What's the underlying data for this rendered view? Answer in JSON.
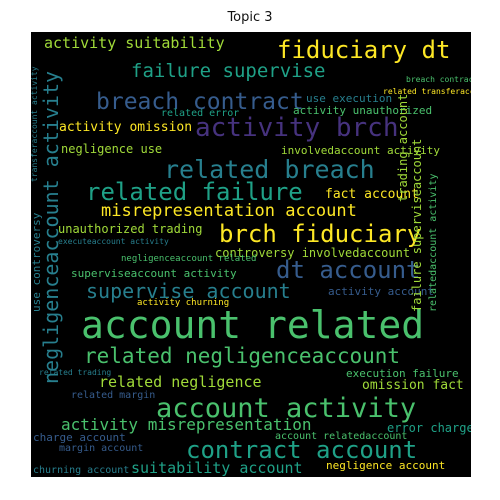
{
  "title": "Topic 3",
  "words": {
    "w1": "account related",
    "w2": "account activity",
    "w3": "contract account",
    "w4": "related negligenceaccount",
    "w5": "activity brch",
    "w6": "brch fiduciary",
    "w7": "fiduciary dt",
    "w8": "breach contract",
    "w9": "related breach",
    "w10": "related failure",
    "w11": "dt account",
    "w12": "supervise account",
    "w13": "misrepresentation account",
    "w14": "failure supervise",
    "w15": "negligenceaccount activity",
    "w16": "activity suitability",
    "w17": "activity misrepresentation",
    "w18": "suitability account",
    "w19": "related negligence",
    "w20": "activity omission",
    "w21": "fact account",
    "w22": "negligence use",
    "w23": "involvedaccount activity",
    "w24": "unauthorized trading",
    "w25": "controversy involvedaccount",
    "w26": "superviseaccount activity",
    "w27": "use execution",
    "w28": "activity unauthorized",
    "w29": "related error",
    "w30": "omission fact",
    "w31": "execution failure",
    "w32": "error charge",
    "w33": "charge account",
    "w34": "margin account",
    "w35": "churning account",
    "w36": "negligence account",
    "w37": "account relatedaccount",
    "w38": "executeaccount activity",
    "w39": "use controversy",
    "w40": "trading account",
    "w41": "failure superviseaccount",
    "w42": "relatedaccount activity",
    "w43": "related margin",
    "w44": "activity churning",
    "w45": "activity account",
    "w46": "related transferaccount",
    "w47": "related trading",
    "w48": "negligenceaccount related",
    "w49": "breach contractaccount",
    "w50": "transferaccount activity"
  },
  "colors": {
    "background": "#000000",
    "yellow": "#fde725",
    "lightgreen": "#a0da39",
    "green": "#4ac16d",
    "teal": "#1fa187",
    "cyan": "#277f8e",
    "blue": "#365c8d",
    "indigo": "#46327e",
    "purple": "#440154"
  }
}
